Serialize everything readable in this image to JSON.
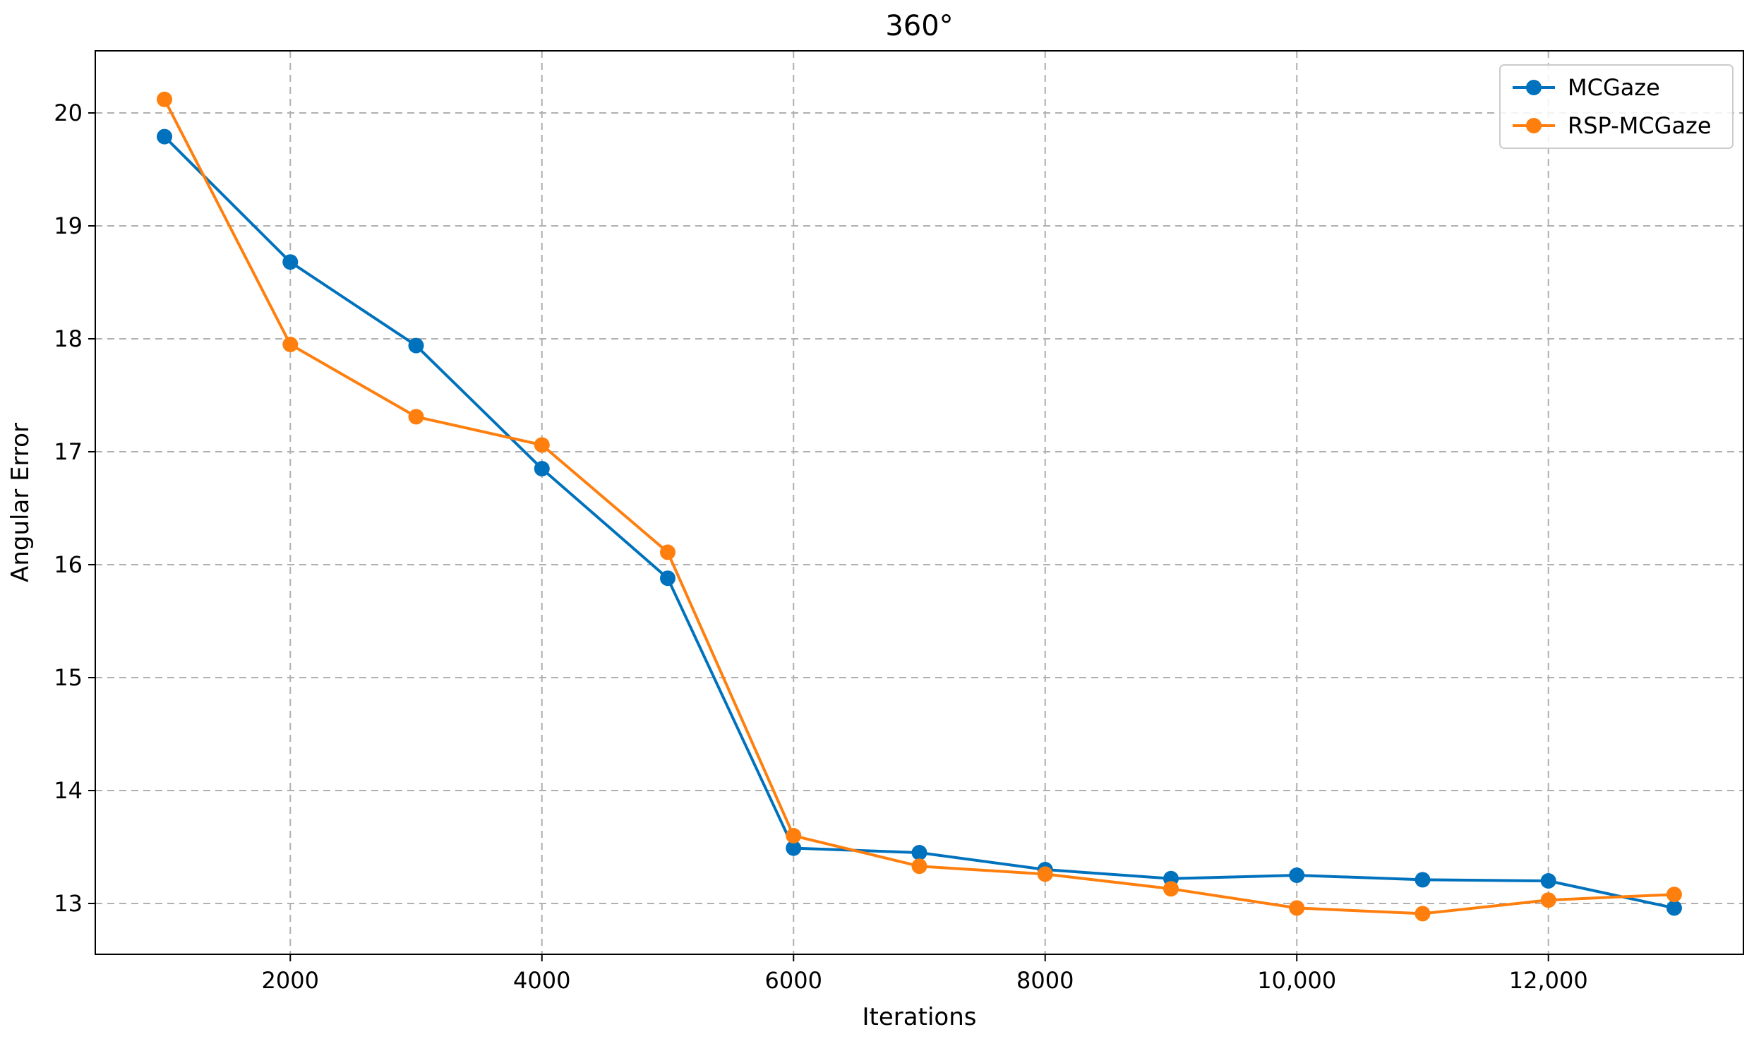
{
  "chart_data": {
    "type": "line",
    "title": "360°",
    "xlabel": "Iterations",
    "ylabel": "Angular Error",
    "x": [
      1000,
      2000,
      3000,
      4000,
      5000,
      6000,
      7000,
      8000,
      9000,
      10000,
      11000,
      12000,
      13000
    ],
    "xlim": [
      450,
      13550
    ],
    "ylim": [
      12.55,
      20.55
    ],
    "xticks": [
      {
        "value": 2000,
        "label": "2000"
      },
      {
        "value": 4000,
        "label": "4000"
      },
      {
        "value": 6000,
        "label": "6000"
      },
      {
        "value": 8000,
        "label": "8000"
      },
      {
        "value": 10000,
        "label": "10,000"
      },
      {
        "value": 12000,
        "label": "12,000"
      }
    ],
    "yticks": [
      {
        "value": 13,
        "label": "13"
      },
      {
        "value": 14,
        "label": "14"
      },
      {
        "value": 15,
        "label": "15"
      },
      {
        "value": 16,
        "label": "16"
      },
      {
        "value": 17,
        "label": "17"
      },
      {
        "value": 18,
        "label": "18"
      },
      {
        "value": 19,
        "label": "19"
      },
      {
        "value": 20,
        "label": "20"
      }
    ],
    "grid": true,
    "legend_position": "top-right",
    "series": [
      {
        "name": "MCGaze",
        "color": "#0072BD",
        "values": [
          19.79,
          18.68,
          17.94,
          16.85,
          15.88,
          13.49,
          13.45,
          13.3,
          13.22,
          13.25,
          13.21,
          13.2,
          12.96
        ]
      },
      {
        "name": "RSP-MCGaze",
        "color": "#FF7F0E",
        "values": [
          20.12,
          17.95,
          17.31,
          17.06,
          16.11,
          13.6,
          13.33,
          13.26,
          13.13,
          12.96,
          12.91,
          13.03,
          13.08
        ]
      }
    ]
  }
}
